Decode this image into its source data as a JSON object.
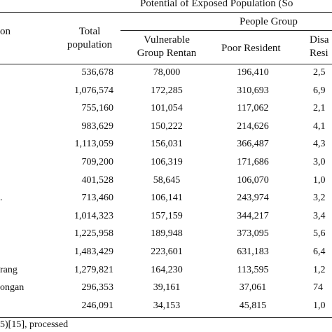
{
  "header": {
    "super_title": "Potential of Exposed Population (So",
    "group_title": "People Group",
    "col_location_fragment": "on",
    "col_total_line1": "Total",
    "col_total_line2": "population",
    "col_vulnerable_line1": "Vulnerable",
    "col_vulnerable_line2": "Group Rentan",
    "col_poor": "Poor Resident",
    "col_dis_line1": "Disa",
    "col_dis_line2": "Resi"
  },
  "rows": [
    {
      "loc": "",
      "total": "536,678",
      "vulnerable": "78,000",
      "poor": "196,410",
      "dis": "2,5"
    },
    {
      "loc": "",
      "total": "1,076,574",
      "vulnerable": "172,285",
      "poor": "310,693",
      "dis": "6,9"
    },
    {
      "loc": "",
      "total": "755,160",
      "vulnerable": "101,054",
      "poor": "117,062",
      "dis": "2,1"
    },
    {
      "loc": "",
      "total": "983,629",
      "vulnerable": "150,222",
      "poor": "214,626",
      "dis": "4,1"
    },
    {
      "loc": "",
      "total": "1,113,059",
      "vulnerable": "156,031",
      "poor": "366,487",
      "dis": "4,3"
    },
    {
      "loc": "",
      "total": "709,200",
      "vulnerable": "106,319",
      "poor": "171,686",
      "dis": "3,0"
    },
    {
      "loc": "",
      "total": "401,528",
      "vulnerable": "58,645",
      "poor": "106,070",
      "dis": "1,0"
    },
    {
      "loc": ".",
      "total": "713,460",
      "vulnerable": "106,141",
      "poor": "243,974",
      "dis": "3,2"
    },
    {
      "loc": "",
      "total": "1,014,323",
      "vulnerable": "157,159",
      "poor": "344,217",
      "dis": "3,4"
    },
    {
      "loc": "",
      "total": "1,225,958",
      "vulnerable": "189,948",
      "poor": "373,095",
      "dis": "5,6"
    },
    {
      "loc": "",
      "total": "1,483,429",
      "vulnerable": "223,601",
      "poor": "631,183",
      "dis": "6,4"
    },
    {
      "loc": "rang",
      "total": "1,279,821",
      "vulnerable": "164,230",
      "poor": "113,595",
      "dis": "1,2"
    },
    {
      "loc": "ongan",
      "total": "296,353",
      "vulnerable": "39,161",
      "poor": "37,061",
      "dis": "74"
    },
    {
      "loc": "",
      "total": "246,091",
      "vulnerable": "34,153",
      "poor": "45,815",
      "dis": "1,0"
    }
  ],
  "footer": {
    "source_note": "5)[15], processed"
  }
}
